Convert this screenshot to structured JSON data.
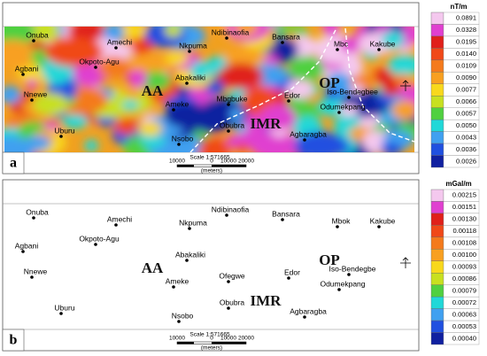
{
  "panels": [
    {
      "label": "a",
      "unit": "nT/m",
      "colorbar": [
        "0.0891",
        "0.0328",
        "0.0195",
        "0.0140",
        "0.0109",
        "0.0090",
        "0.0077",
        "0.0066",
        "0.0057",
        "0.0050",
        "0.0043",
        "0.0036",
        "0.0026"
      ],
      "places": [
        "Onuba",
        "Amechi",
        "Ndibinaofia",
        "Bansara",
        "Mbc",
        "Kakube",
        "Agbani",
        "Okpoto-Agu",
        "Nkpuma",
        "Abakaliki",
        "Nnewe",
        "Ameke",
        "Mbgbuke",
        "Edor",
        "Iso-Bendegbee",
        "Odumekpang",
        "Obubra",
        "Agbaragba",
        "Uburu",
        "Nsobo"
      ],
      "zones": [
        "AA",
        "IMR",
        "OP"
      ],
      "scale": {
        "title": "Scale 1:571665",
        "ticks": [
          "10000",
          "0",
          "10000",
          "20000"
        ],
        "unit": "(meters)"
      }
    },
    {
      "label": "b",
      "unit": "mGal/m",
      "colorbar": [
        "0.00215",
        "0.00151",
        "0.00130",
        "0.00118",
        "0.00108",
        "0.00100",
        "0.00093",
        "0.00086",
        "0.00079",
        "0.00072",
        "0.00063",
        "0.00053",
        "0.00040"
      ],
      "places": [
        "Onuba",
        "Amechi",
        "Ndibinaofia",
        "Bansara",
        "Mbok",
        "Kakube",
        "Agbani",
        "Okpoto-Agu",
        "Nkpuma",
        "Abakaliki",
        "Nnewe",
        "Ameke",
        "Ofegwe",
        "Edor",
        "Iso-Bendegbe",
        "Odumekpang",
        "Obubra",
        "Agbaragba",
        "Uburu",
        "Nsobo"
      ],
      "zones": [
        "AA",
        "IMR",
        "OP"
      ],
      "scale": {
        "title": "Scale 1:571665",
        "ticks": [
          "10000",
          "0",
          "10000",
          "20000"
        ],
        "unit": "(meters)"
      }
    }
  ]
}
